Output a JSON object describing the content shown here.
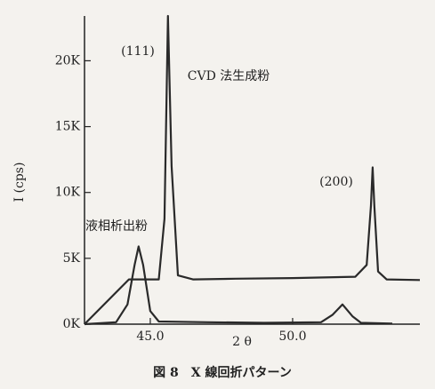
{
  "chart_data": {
    "type": "line",
    "caption": "図 8　X 線回折パターン",
    "x_label": "2 θ",
    "y_label": "I (cps)",
    "annotations": [
      "(111)",
      "CVD 法生成粉",
      "(200)",
      "液相析出粉"
    ],
    "xlim": [
      42.69,
      54.47
    ],
    "xticks": [
      {
        "value": 45,
        "label": "45.0"
      },
      {
        "value": 50,
        "label": "50.0"
      }
    ],
    "ylim": [
      0,
      23400
    ],
    "yticks": [
      {
        "value": 0,
        "label": "0K"
      },
      {
        "value": 5000,
        "label": "5K"
      },
      {
        "value": 10000,
        "label": "10K"
      },
      {
        "value": 15000,
        "label": "15K"
      },
      {
        "value": 20000,
        "label": "20K"
      }
    ],
    "series": [
      {
        "color": "#2a2a2a",
        "x": [
          42.69,
          44.25,
          45.3,
          45.5,
          45.62,
          45.75,
          45.97,
          46.5,
          48,
          50,
          52.2,
          52.6,
          52.75,
          52.81,
          52.87,
          53.0,
          53.3,
          54.47
        ],
        "values": [
          0,
          3400,
          3400,
          8000,
          23400,
          12000,
          3700,
          3400,
          3450,
          3500,
          3600,
          4500,
          9000,
          11900,
          9000,
          4000,
          3400,
          3350
        ]
      },
      {
        "color": "#2a2a2a",
        "x": [
          42.69,
          43.8,
          44.2,
          44.45,
          44.59,
          44.75,
          45.0,
          45.3,
          47,
          49,
          51.0,
          51.4,
          51.75,
          52.1,
          52.4,
          53.5
        ],
        "values": [
          0,
          150,
          1500,
          4500,
          5900,
          4500,
          1000,
          200,
          150,
          100,
          150,
          700,
          1500,
          600,
          100,
          50
        ]
      }
    ]
  }
}
